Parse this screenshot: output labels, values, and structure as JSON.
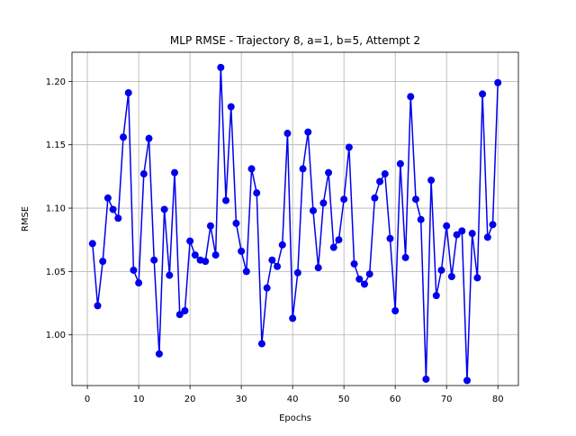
{
  "chart_data": {
    "type": "line",
    "title": "MLP RMSE - Trajectory 8, a=1, b=5, Attempt 2",
    "xlabel": "Epochs",
    "ylabel": "RMSE",
    "xlim": [
      -3,
      84
    ],
    "ylim": [
      0.96,
      1.223
    ],
    "xticks": [
      0,
      10,
      20,
      30,
      40,
      50,
      60,
      70,
      80
    ],
    "xtick_labels": [
      "0",
      "10",
      "20",
      "30",
      "40",
      "50",
      "60",
      "70",
      "80"
    ],
    "yticks": [
      1.0,
      1.05,
      1.1,
      1.15,
      1.2
    ],
    "ytick_labels": [
      "1.00",
      "1.05",
      "1.10",
      "1.15",
      "1.20"
    ],
    "grid": true,
    "marker": "circle",
    "color": "#0000ee",
    "series": [
      {
        "x": [
          1,
          2,
          3,
          4,
          5,
          6,
          7,
          8,
          9,
          10,
          11,
          12,
          13,
          14,
          15,
          16,
          17,
          18,
          19,
          20,
          21,
          22,
          23,
          24,
          25,
          26,
          27,
          28,
          29,
          30,
          31,
          32,
          33,
          34,
          35,
          36,
          37,
          38,
          39,
          40,
          41,
          42,
          43,
          44,
          45,
          46,
          47,
          48,
          49,
          50,
          51,
          52,
          53,
          54,
          55,
          56,
          57,
          58,
          59,
          60,
          61,
          62,
          63,
          64,
          65,
          66,
          67,
          68,
          69,
          70,
          71,
          72,
          73,
          74,
          75,
          76,
          77,
          78,
          79,
          80
        ],
        "values": [
          1.072,
          1.023,
          1.058,
          1.108,
          1.099,
          1.092,
          1.156,
          1.191,
          1.051,
          1.041,
          1.127,
          1.155,
          1.059,
          0.985,
          1.099,
          1.047,
          1.128,
          1.016,
          1.019,
          1.074,
          1.063,
          1.059,
          1.058,
          1.086,
          1.063,
          1.211,
          1.106,
          1.18,
          1.088,
          1.066,
          1.05,
          1.131,
          1.112,
          0.993,
          1.037,
          1.059,
          1.054,
          1.071,
          1.159,
          1.013,
          1.049,
          1.131,
          1.16,
          1.098,
          1.053,
          1.104,
          1.128,
          1.069,
          1.075,
          1.107,
          1.148,
          1.056,
          1.044,
          1.04,
          1.048,
          1.108,
          1.121,
          1.127,
          1.076,
          1.019,
          1.135,
          1.061,
          1.188,
          1.107,
          1.091,
          0.965,
          1.122,
          1.031,
          1.051,
          1.086,
          1.046,
          1.079,
          1.082,
          0.964,
          1.08,
          1.045,
          1.19,
          1.077,
          1.087,
          1.199
        ]
      }
    ]
  }
}
